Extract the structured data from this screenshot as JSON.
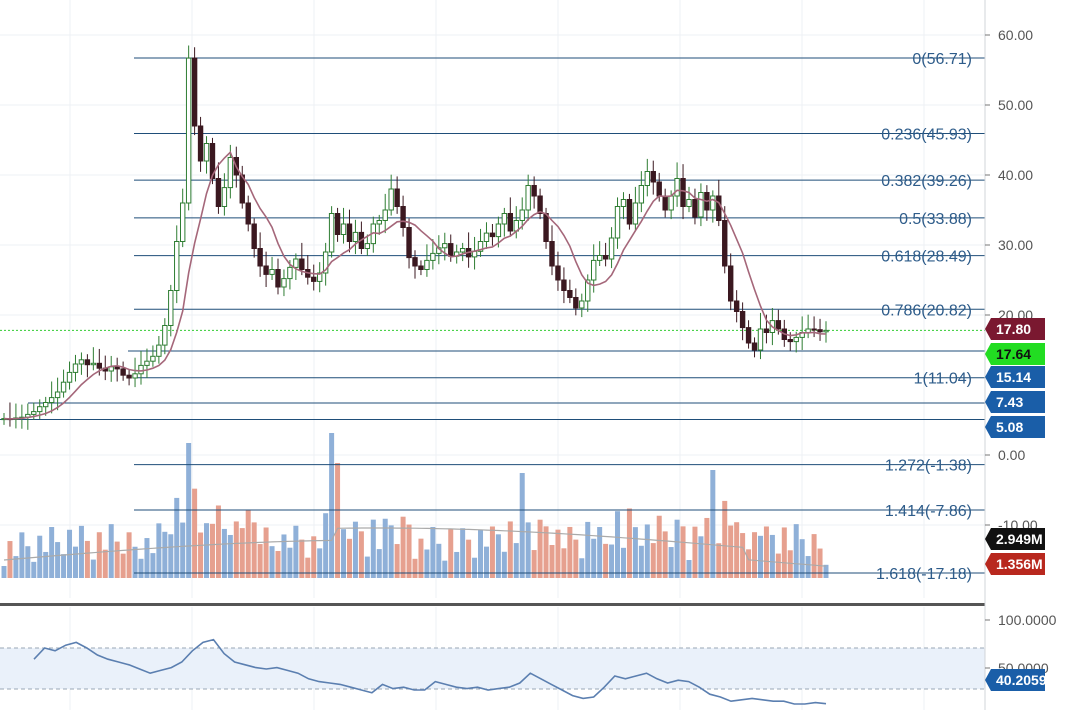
{
  "colors": {
    "background": "#ffffff",
    "grid": "#eef1f4",
    "up_candle": "#2e7d32",
    "down_candle": "#3b1820",
    "ma_line": "#a5677a",
    "fib_line": "#1f4e79",
    "fib_text": "#2e5c8a",
    "dotted_price": "#33cc33",
    "vol_up": "#8fb0d8",
    "vol_down": "#e6a08f",
    "vol_ma": "#aaaaaa",
    "rsi_line": "#5b7fb0",
    "rsi_band": "#eaf1fa",
    "axis_text": "#555555",
    "badge_close": "#7a1830",
    "badge_current": "#22dd22",
    "badge_blue": "#1a5ea8",
    "badge_black": "#111111",
    "badge_red": "#b8281e",
    "separator": "#555555"
  },
  "price_axis": {
    "ticks": [
      "60.00",
      "50.00",
      "40.00",
      "30.00",
      "20.00",
      "0.00",
      "-10.00"
    ],
    "tick_values": [
      60,
      50,
      40,
      30,
      20,
      0,
      -10
    ]
  },
  "rsi_axis": {
    "ticks": [
      "100.0000",
      "50.0000"
    ],
    "tick_values": [
      100,
      50
    ]
  },
  "badges": [
    {
      "label": "17.80",
      "value": 17.8,
      "kind": "close"
    },
    {
      "label": "17.64",
      "value": 17.64,
      "kind": "current"
    },
    {
      "label": "15.14",
      "value": 15.14,
      "kind": "blue"
    },
    {
      "label": "7.43",
      "value": 7.43,
      "kind": "blue"
    },
    {
      "label": "5.08",
      "value": 5.08,
      "kind": "blue"
    },
    {
      "label": "2.949M",
      "value": 2949000,
      "kind": "black"
    },
    {
      "label": "1.356M",
      "value": 1356000,
      "kind": "red"
    },
    {
      "label": "40.2059",
      "value": 40.2059,
      "kind": "rsi"
    }
  ],
  "chart_data": {
    "type": "candlestick",
    "price_ylim": [
      -17.18,
      66
    ],
    "fibonacci_levels": [
      {
        "label": "0(56.71)",
        "value": 56.71
      },
      {
        "label": "0.236(45.93)",
        "value": 45.93
      },
      {
        "label": "0.382(39.26)",
        "value": 39.26
      },
      {
        "label": "0.5(33.88)",
        "value": 33.88
      },
      {
        "label": "0.618(28.49)",
        "value": 28.49
      },
      {
        "label": "0.786(20.82)",
        "value": 20.82
      },
      {
        "label": "1(11.04)",
        "value": 11.04
      },
      {
        "label": "1.272(-1.38)",
        "value": -1.38
      },
      {
        "label": "1.414(-7.86)",
        "value": -7.86
      },
      {
        "label": "1.618(-17.18)",
        "value": -17.18
      }
    ],
    "horizontal_levels": [
      15.14,
      7.43,
      5.08
    ],
    "last_price": 17.8,
    "current_price": 17.64,
    "closes": [
      5.2,
      5.1,
      5.3,
      5.4,
      5.8,
      6.2,
      6.9,
      7.5,
      8.2,
      9.0,
      10.4,
      11.8,
      13.0,
      13.6,
      12.9,
      13.1,
      12.4,
      12.0,
      12.6,
      12.3,
      11.4,
      11.0,
      11.6,
      12.8,
      13.4,
      14.1,
      15.7,
      18.5,
      23.5,
      30.5,
      36.0,
      56.7,
      47.0,
      42.0,
      44.5,
      39.5,
      35.5,
      38.2,
      42.5,
      40.0,
      36.0,
      33.0,
      29.5,
      27.0,
      25.8,
      26.5,
      24.0,
      25.2,
      26.8,
      28.0,
      26.5,
      25.4,
      24.8,
      26.0,
      29.0,
      34.5,
      31.5,
      33.0,
      30.5,
      31.8,
      29.5,
      30.2,
      33.0,
      33.5,
      35.0,
      38.0,
      35.5,
      32.5,
      28.2,
      27.0,
      26.5,
      27.8,
      28.8,
      29.6,
      30.2,
      28.4,
      29.0,
      29.5,
      28.3,
      29.1,
      30.5,
      31.7,
      31.2,
      33.0,
      34.5,
      32.0,
      33.5,
      35.0,
      38.5,
      37.0,
      34.5,
      30.5,
      27.0,
      25.0,
      23.5,
      22.5,
      21.0,
      22.0,
      25.0,
      27.8,
      28.5,
      28.0,
      31.0,
      35.5,
      36.5,
      33.0,
      36.0,
      38.5,
      40.5,
      39.0,
      37.0,
      35.0,
      37.0,
      39.5,
      35.5,
      36.5,
      34.0,
      37.5,
      35.0,
      37.0,
      33.5,
      27.0,
      22.0,
      20.5,
      18.2,
      16.0,
      15.0,
      18.0,
      17.5,
      19.2,
      18.0,
      16.5,
      16.2,
      16.8,
      17.5,
      18.0,
      17.9,
      17.6,
      17.8
    ],
    "volume_ma_present": true,
    "rsi": [
      72,
      80,
      78,
      82,
      84,
      80,
      75,
      72,
      70,
      68,
      65,
      62,
      64,
      66,
      70,
      78,
      84,
      86,
      76,
      70,
      68,
      66,
      65,
      66,
      64,
      62,
      58,
      56,
      55,
      54,
      52,
      50,
      48,
      54,
      51,
      52,
      50,
      50,
      56,
      54,
      52,
      51,
      52,
      50,
      51,
      52,
      55,
      62,
      58,
      54,
      50,
      46,
      44,
      45,
      52,
      60,
      58,
      60,
      62,
      58,
      55,
      57,
      56,
      52,
      47,
      45,
      42,
      43,
      44,
      43,
      42,
      42,
      40,
      40,
      41,
      40.2
    ]
  }
}
